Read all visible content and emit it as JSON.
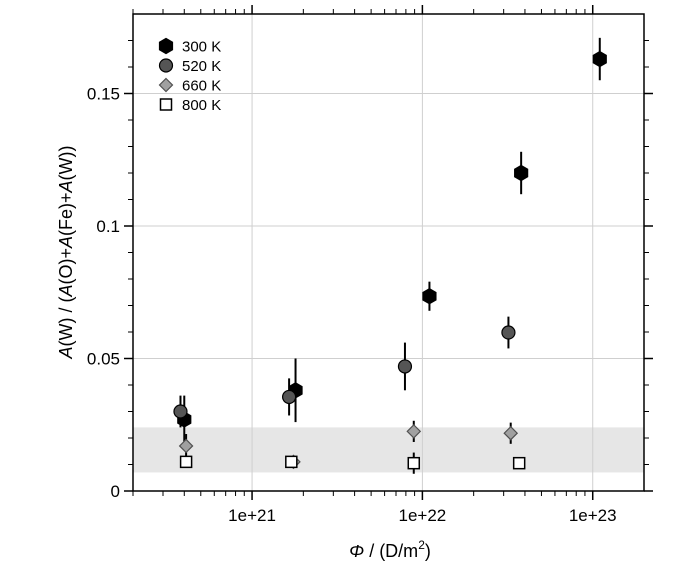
{
  "chart_data": {
    "type": "scatter",
    "xscale": "log",
    "xlim": [
      2e+20,
      2e+23
    ],
    "ylim": [
      0,
      0.18
    ],
    "grid": true,
    "legend_position": "top-left",
    "ylabel_parts": [
      "A",
      "(W) / (",
      "A",
      "(O)+",
      "A",
      "(Fe)+",
      "A",
      "(W))"
    ],
    "xlabel_parts": [
      "Φ",
      " / (D/m",
      "2",
      ")"
    ],
    "xticks": [
      {
        "value": 1e+21,
        "label": "1e+21"
      },
      {
        "value": 1e+22,
        "label": "1e+22"
      },
      {
        "value": 1e+23,
        "label": "1e+23"
      }
    ],
    "yticks": [
      {
        "value": 0,
        "label": "0"
      },
      {
        "value": 0.05,
        "label": "0.05"
      },
      {
        "value": 0.1,
        "label": "0.1"
      },
      {
        "value": 0.15,
        "label": "0.15"
      }
    ],
    "shaded_band": {
      "y0": 0.007,
      "y1": 0.024,
      "color": "#e6e6e6"
    },
    "series": [
      {
        "name": "300 K",
        "marker": "hexagon",
        "color": "#000000",
        "stroke": "#000000",
        "points": [
          {
            "x": 4e+20,
            "y": 0.027,
            "err": 0.009
          },
          {
            "x": 1.8e+21,
            "y": 0.038,
            "err": 0.012
          },
          {
            "x": 1.1e+22,
            "y": 0.0735,
            "err": 0.0055
          },
          {
            "x": 3.8e+22,
            "y": 0.12,
            "err": 0.008
          },
          {
            "x": 1.1e+23,
            "y": 0.163,
            "err": 0.008
          }
        ]
      },
      {
        "name": "520 K",
        "marker": "circle",
        "color": "#555555",
        "stroke": "#000000",
        "points": [
          {
            "x": 3.8e+20,
            "y": 0.03,
            "err": 0.006
          },
          {
            "x": 1.65e+21,
            "y": 0.0355,
            "err": 0.007
          },
          {
            "x": 7.9e+21,
            "y": 0.047,
            "err": 0.009
          },
          {
            "x": 3.2e+22,
            "y": 0.0598,
            "err": 0.006
          }
        ]
      },
      {
        "name": "660 K",
        "marker": "diamond",
        "color": "#a0a0a0",
        "stroke": "#505050",
        "points": [
          {
            "x": 4.1e+20,
            "y": 0.017,
            "err": 0.0045
          },
          {
            "x": 1.75e+21,
            "y": 0.011,
            "err": 0.002
          },
          {
            "x": 8.9e+21,
            "y": 0.0225,
            "err": 0.004
          },
          {
            "x": 3.3e+22,
            "y": 0.0218,
            "err": 0.004
          }
        ]
      },
      {
        "name": "800 K",
        "marker": "square",
        "color": "#ffffff",
        "stroke": "#000000",
        "points": [
          {
            "x": 4.1e+20,
            "y": 0.011,
            "err": 0.0015
          },
          {
            "x": 1.7e+21,
            "y": 0.011,
            "err": 0.0015
          },
          {
            "x": 8.9e+21,
            "y": 0.0105,
            "err": 0.004
          },
          {
            "x": 3.7e+22,
            "y": 0.0105,
            "err": 0.0015
          }
        ]
      }
    ]
  }
}
